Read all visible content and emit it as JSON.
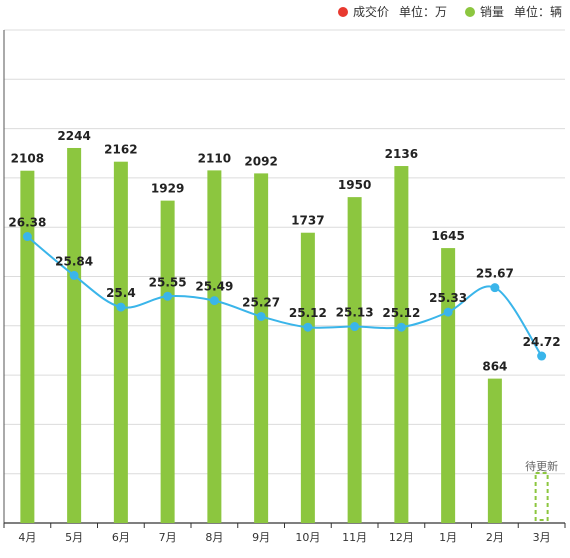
{
  "legend": [
    {
      "label": "成交价",
      "unit": "单位：万",
      "color": "#e8392f"
    },
    {
      "label": "销量",
      "unit": "单位：辆",
      "color": "#8cc63f"
    }
  ],
  "pending_label": "待更新",
  "chart_data": {
    "type": "bar",
    "categories": [
      "4月",
      "5月",
      "6月",
      "7月",
      "8月",
      "9月",
      "10月",
      "11月",
      "12月",
      "1月",
      "2月",
      "3月"
    ],
    "series": [
      {
        "name": "成交价",
        "type": "line",
        "unit": "万",
        "color": "#3ab5ea",
        "values": [
          26.38,
          25.84,
          25.4,
          25.55,
          25.49,
          25.27,
          25.12,
          25.13,
          25.12,
          25.33,
          25.67,
          24.72
        ]
      },
      {
        "name": "销量",
        "type": "bar",
        "unit": "辆",
        "color": "#8cc63f",
        "values": [
          2108,
          2244,
          2162,
          1929,
          2110,
          2092,
          1737,
          1950,
          2136,
          1645,
          864,
          null
        ]
      }
    ],
    "grid": true,
    "legend_position": "top-right"
  }
}
